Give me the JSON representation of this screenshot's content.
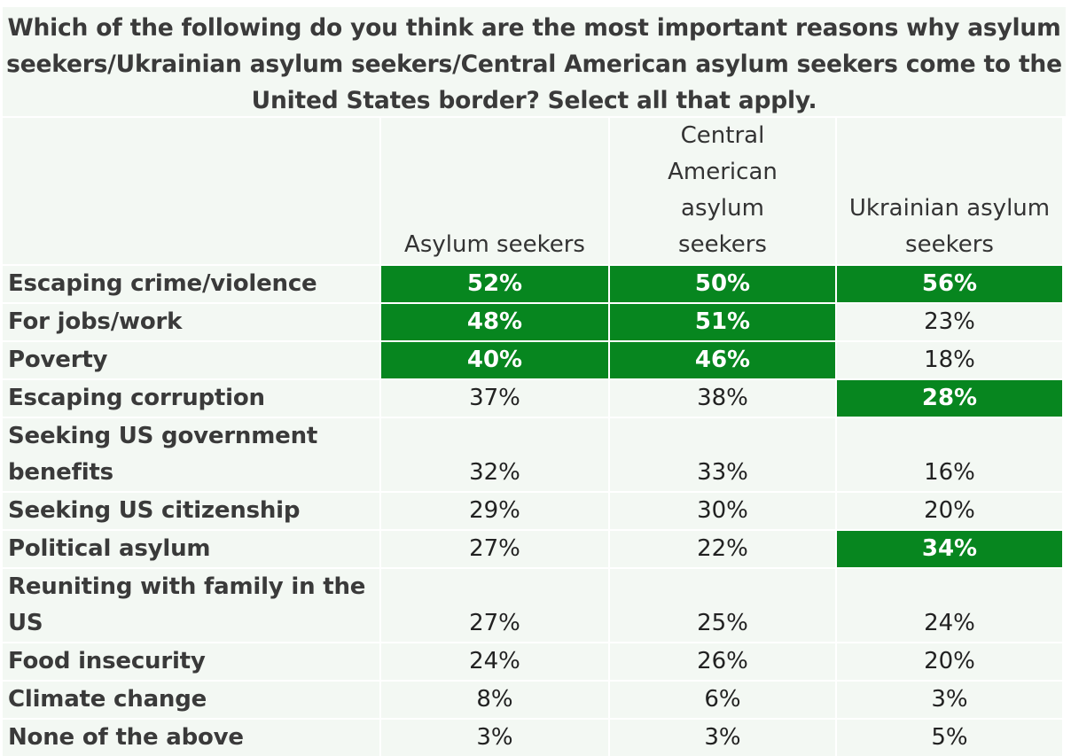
{
  "title": "Which of the following do you think are the most important reasons why asylum seekers/Ukrainian asylum seekers/Central American asylum seekers come to the United States border? Select all that apply.",
  "chart_data": {
    "type": "table",
    "columns": [
      "",
      "Asylum seekers",
      "Central American asylum seekers",
      "Ukrainian asylum seekers"
    ],
    "rows": [
      {
        "label": "Escaping crime/violence",
        "values": [
          "52%",
          "50%",
          "56%"
        ],
        "highlight": [
          true,
          true,
          true
        ]
      },
      {
        "label": "For jobs/work",
        "values": [
          "48%",
          "51%",
          "23%"
        ],
        "highlight": [
          true,
          true,
          false
        ]
      },
      {
        "label": "Poverty",
        "values": [
          "40%",
          "46%",
          "18%"
        ],
        "highlight": [
          true,
          true,
          false
        ]
      },
      {
        "label": "Escaping corruption",
        "values": [
          "37%",
          "38%",
          "28%"
        ],
        "highlight": [
          false,
          false,
          true
        ]
      },
      {
        "label": "Seeking US government benefits",
        "values": [
          "32%",
          "33%",
          "16%"
        ],
        "highlight": [
          false,
          false,
          false
        ]
      },
      {
        "label": "Seeking US citizenship",
        "values": [
          "29%",
          "30%",
          "20%"
        ],
        "highlight": [
          false,
          false,
          false
        ]
      },
      {
        "label": "Political asylum",
        "values": [
          "27%",
          "22%",
          "34%"
        ],
        "highlight": [
          false,
          false,
          true
        ]
      },
      {
        "label": "Reuniting with family in the US",
        "values": [
          "27%",
          "25%",
          "24%"
        ],
        "highlight": [
          false,
          false,
          false
        ]
      },
      {
        "label": "Food insecurity",
        "values": [
          "24%",
          "26%",
          "20%"
        ],
        "highlight": [
          false,
          false,
          false
        ]
      },
      {
        "label": "Climate change",
        "values": [
          "8%",
          "6%",
          "3%"
        ],
        "highlight": [
          false,
          false,
          false
        ]
      },
      {
        "label": "None of the above",
        "values": [
          "3%",
          "3%",
          "5%"
        ],
        "highlight": [
          false,
          false,
          false
        ]
      }
    ],
    "colors": {
      "highlight": "#07861f",
      "cell_background": "#f3f8f3",
      "highlight_text": "#ffffff"
    }
  }
}
